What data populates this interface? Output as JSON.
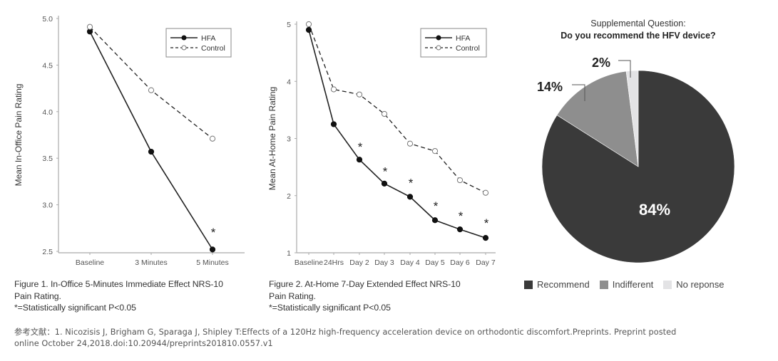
{
  "chart_data": [
    {
      "id": "fig1",
      "type": "line",
      "title": "",
      "xlabel": "",
      "ylabel": "Mean In-Office Pain Rating",
      "categories": [
        "Baseline",
        "3 Minutes",
        "5 Minutes"
      ],
      "ylim": [
        2.5,
        5.0
      ],
      "yticks": [
        "2.5",
        "3.0",
        "3.5",
        "4.0",
        "4.5",
        "5.0"
      ],
      "ytick_values": [
        2.5,
        3.0,
        3.5,
        4.0,
        4.5,
        5.0
      ],
      "grid": false,
      "legend_position": "top-right",
      "series": [
        {
          "name": "HFA",
          "style": "solid-filled-marker",
          "values": [
            4.86,
            3.57,
            2.52
          ]
        },
        {
          "name": "Control",
          "style": "dashed-open-marker",
          "values": [
            4.91,
            4.23,
            3.71
          ]
        }
      ],
      "annotations": [
        {
          "text": "*",
          "category_index": 2,
          "y": 2.72
        }
      ]
    },
    {
      "id": "fig2",
      "type": "line",
      "title": "",
      "xlabel": "",
      "ylabel": "Mean At-Home Pain Rating",
      "categories": [
        "Baseline",
        "24Hrs",
        "Day 2",
        "Day 3",
        "Day 4",
        "Day 5",
        "Day 6",
        "Day 7"
      ],
      "ylim": [
        1,
        5
      ],
      "yticks": [
        "1",
        "2",
        "3",
        "4",
        "5"
      ],
      "ytick_values": [
        1,
        2,
        3,
        4,
        5
      ],
      "grid": false,
      "legend_position": "top-right",
      "series": [
        {
          "name": "HFA",
          "style": "solid-filled-marker",
          "values": [
            4.9,
            3.25,
            2.63,
            2.21,
            1.98,
            1.57,
            1.41,
            1.26
          ]
        },
        {
          "name": "Control",
          "style": "dashed-open-marker",
          "values": [
            5.0,
            3.86,
            3.77,
            3.43,
            2.91,
            2.78,
            2.27,
            2.05
          ]
        }
      ],
      "annotations": [
        {
          "text": "*",
          "category_index": 2,
          "y": 2.88
        },
        {
          "text": "*",
          "category_index": 3,
          "y": 2.45
        },
        {
          "text": "*",
          "category_index": 4,
          "y": 2.25
        },
        {
          "text": "*",
          "category_index": 5,
          "y": 1.85
        },
        {
          "text": "*",
          "category_index": 6,
          "y": 1.67
        },
        {
          "text": "*",
          "category_index": 7,
          "y": 1.55
        }
      ]
    },
    {
      "id": "pie",
      "type": "pie",
      "title": "Supplemental Question:",
      "subtitle": "Do you recommend the HFV device?",
      "legend_position": "bottom",
      "slices": [
        {
          "label": "Recommend",
          "value": 84,
          "display": "84%",
          "color": "#3a3a3a"
        },
        {
          "label": "Indifferent",
          "value": 14,
          "display": "14%",
          "color": "#8e8e8e"
        },
        {
          "label": "No reponse",
          "value": 2,
          "display": "2%",
          "color": "#e3e3e5"
        }
      ]
    }
  ],
  "captions": {
    "fig1": {
      "line1": "Figure 1. In-Office 5-Minutes Immediate Effect NRS-10",
      "line2": "Pain Rating.",
      "line3": "*=Statistically significant P<0.05"
    },
    "fig2": {
      "line1": "Figure 2. At-Home 7-Day Extended Effect NRS-10",
      "line2": "Pain Rating.",
      "line3": "*=Statistically significant P<0.05"
    }
  },
  "reference": {
    "line1": "参考文献：1.  Nicozisis J, Brigham G, Sparaga J, Shipley T:Effects of a 120Hz high-frequency acceleration device on orthodontic discomfort.Preprints. Preprint posted",
    "line2": "online October 24,2018.doi:10.20944/preprints201810.0557.v1"
  }
}
